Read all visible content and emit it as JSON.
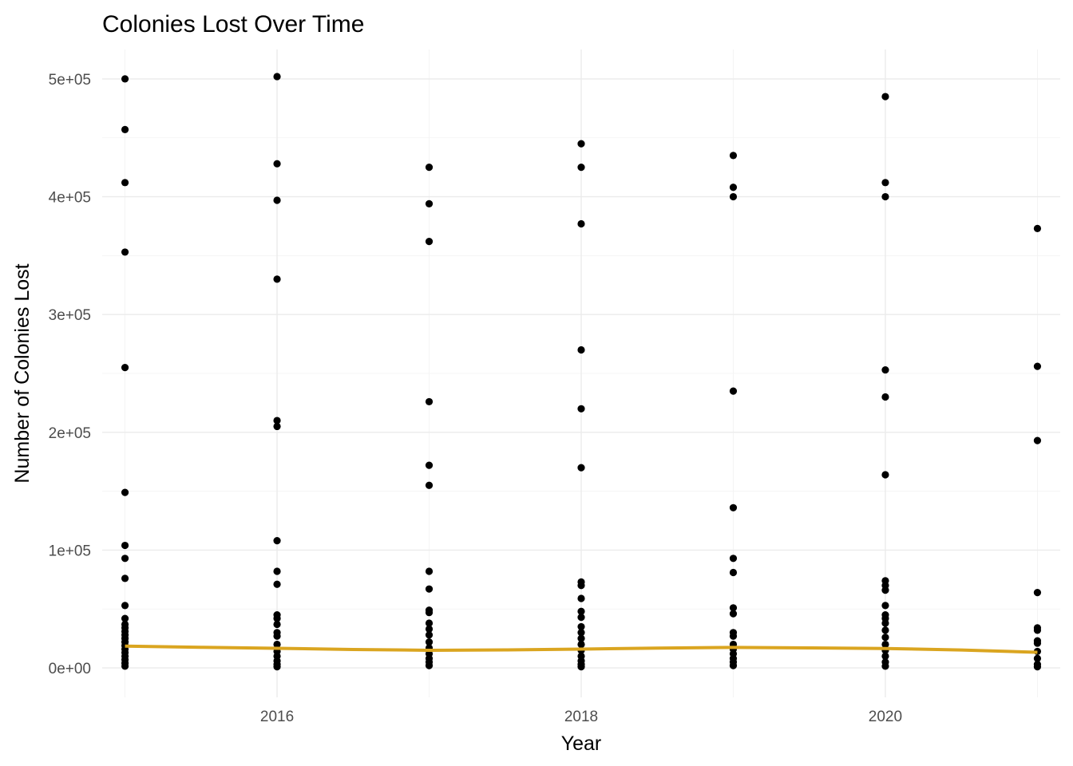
{
  "chart_data": {
    "type": "scatter",
    "title": "Colonies Lost Over Time",
    "xlabel": "Year",
    "ylabel": "Number of Colonies Lost",
    "xlim": [
      2014.85,
      2021.15
    ],
    "ylim": [
      -25000,
      525000
    ],
    "x_ticks": [
      2016,
      2018,
      2020
    ],
    "x_tick_labels": [
      "2016",
      "2018",
      "2020"
    ],
    "y_ticks": [
      0,
      100000,
      200000,
      300000,
      400000,
      500000
    ],
    "y_tick_labels": [
      "0e+00",
      "1e+05",
      "2e+05",
      "3e+05",
      "4e+05",
      "5e+05"
    ],
    "grid": true,
    "point_color": "#000000",
    "trend_color": "#DAA520",
    "points": [
      {
        "x": 2015,
        "values": [
          500000,
          457000,
          412000,
          353000,
          255000,
          149000,
          104000,
          93000,
          76000,
          53000,
          42000,
          37000,
          34000,
          31000,
          28000,
          25000,
          22000,
          19000,
          16000,
          13000,
          10000,
          7000,
          4000,
          1500
        ]
      },
      {
        "x": 2016,
        "values": [
          502000,
          428000,
          397000,
          330000,
          210000,
          205000,
          108000,
          82000,
          71000,
          45000,
          42000,
          37000,
          30000,
          27000,
          20000,
          14000,
          10000,
          6000,
          3000,
          1000
        ]
      },
      {
        "x": 2017,
        "values": [
          425000,
          394000,
          362000,
          226000,
          172000,
          155000,
          82000,
          67000,
          49000,
          47000,
          38000,
          33000,
          28000,
          22000,
          17000,
          12000,
          8000,
          5000,
          2000
        ]
      },
      {
        "x": 2018,
        "values": [
          445000,
          425000,
          377000,
          270000,
          220000,
          170000,
          73000,
          70000,
          59000,
          48000,
          43000,
          35000,
          30000,
          25000,
          20000,
          15000,
          10000,
          6000,
          3000,
          1000
        ]
      },
      {
        "x": 2019,
        "values": [
          435000,
          408000,
          400000,
          235000,
          136000,
          93000,
          81000,
          51000,
          46000,
          30000,
          27000,
          20000,
          16000,
          12000,
          8000,
          5000,
          2000
        ]
      },
      {
        "x": 2020,
        "values": [
          485000,
          412000,
          400000,
          253000,
          230000,
          164000,
          74000,
          70000,
          66000,
          53000,
          45000,
          42000,
          38000,
          32000,
          26000,
          20000,
          15000,
          10000,
          5000,
          1500
        ]
      },
      {
        "x": 2021,
        "values": [
          373000,
          256000,
          193000,
          64000,
          34000,
          32000,
          23000,
          21000,
          14000,
          8000,
          3000,
          1000
        ]
      }
    ],
    "trend": {
      "x": [
        2015,
        2015.5,
        2016,
        2016.5,
        2017,
        2017.5,
        2018,
        2018.5,
        2019,
        2019.5,
        2020,
        2020.5,
        2021
      ],
      "y": [
        18500,
        17500,
        16700,
        15600,
        15000,
        15300,
        16000,
        16800,
        17400,
        17000,
        16500,
        15200,
        13300
      ]
    }
  }
}
